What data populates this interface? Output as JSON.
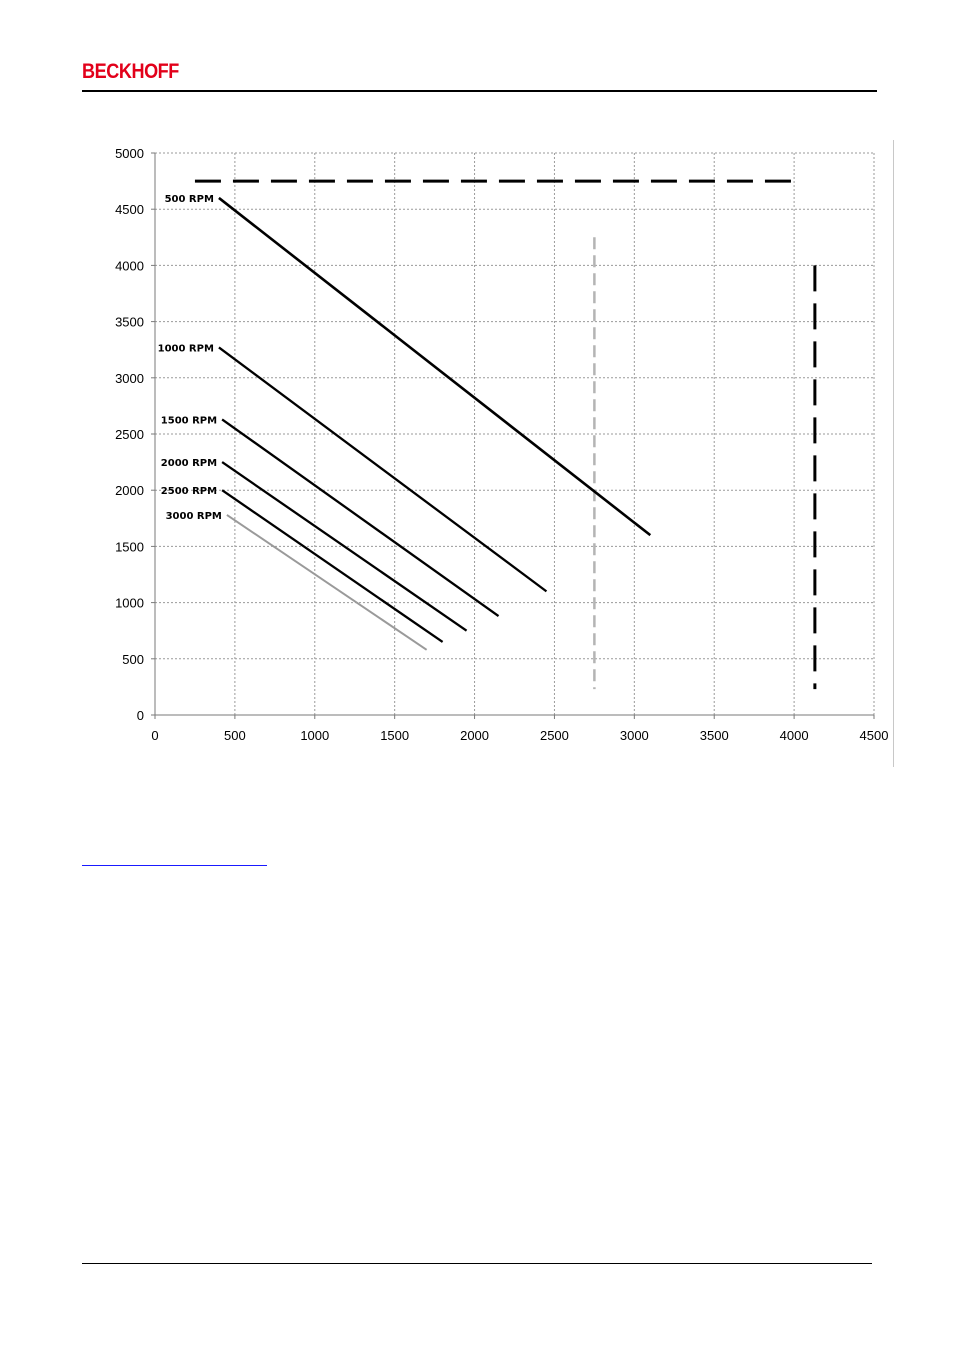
{
  "header": {
    "brand": "BECKHOFF"
  },
  "chart_data": {
    "type": "line",
    "title": "",
    "xlabel": "",
    "ylabel": "",
    "xlim": [
      0,
      4500
    ],
    "ylim": [
      0,
      5000
    ],
    "xticks": [
      0,
      500,
      1000,
      1500,
      2000,
      2500,
      3000,
      3500,
      4000,
      4500
    ],
    "yticks": [
      0,
      500,
      1000,
      1500,
      2000,
      2500,
      3000,
      3500,
      4000,
      4500,
      5000
    ],
    "grid": true,
    "series": [
      {
        "name": "500 RPM",
        "color": "#000000",
        "points": [
          [
            400,
            4600
          ],
          [
            3100,
            1600
          ]
        ]
      },
      {
        "name": "1000 RPM",
        "color": "#000000",
        "points": [
          [
            400,
            3270
          ],
          [
            2450,
            1100
          ]
        ]
      },
      {
        "name": "1500 RPM",
        "color": "#000000",
        "points": [
          [
            420,
            2630
          ],
          [
            2150,
            880
          ]
        ]
      },
      {
        "name": "2000 RPM",
        "color": "#000000",
        "points": [
          [
            420,
            2250
          ],
          [
            1950,
            750
          ]
        ]
      },
      {
        "name": "2500 RPM",
        "color": "#000000",
        "points": [
          [
            420,
            2000
          ],
          [
            1800,
            650
          ]
        ]
      },
      {
        "name": "3000 RPM",
        "color": "#9a9a9a",
        "points": [
          [
            450,
            1780
          ],
          [
            1700,
            580
          ]
        ]
      }
    ],
    "limit_lines": [
      {
        "style": "dashed",
        "color": "#000000",
        "points": [
          [
            250,
            4750
          ],
          [
            4000,
            4750
          ]
        ]
      },
      {
        "style": "dashed",
        "color": "#000000",
        "points": [
          [
            4130,
            4000
          ],
          [
            4130,
            230
          ]
        ]
      },
      {
        "style": "dotted",
        "color": "#b4b4b4",
        "points": [
          [
            2750,
            4250
          ],
          [
            2750,
            230
          ]
        ]
      }
    ]
  }
}
